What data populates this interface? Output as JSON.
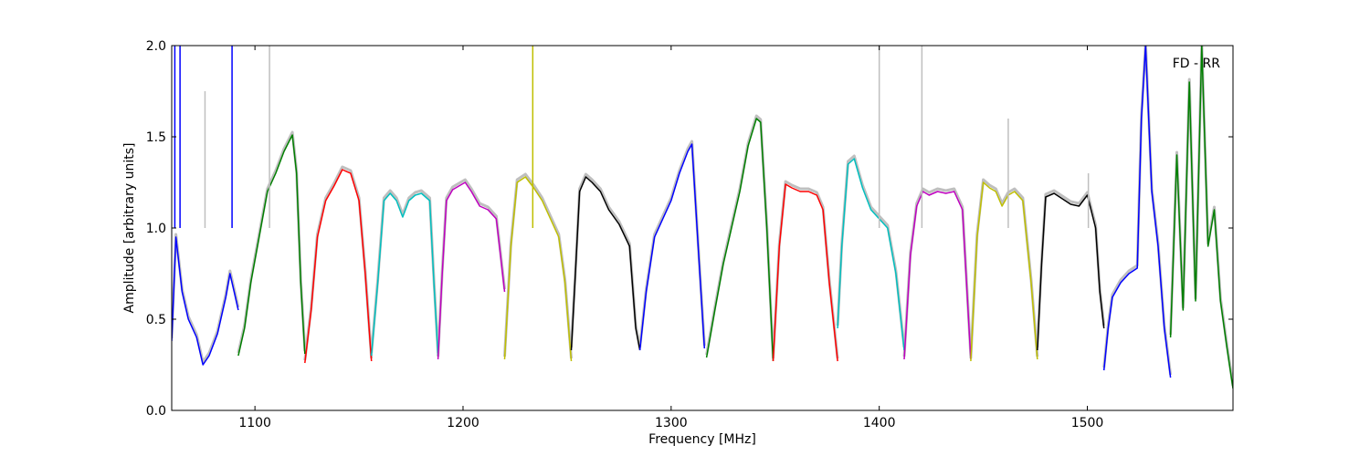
{
  "chart_data": {
    "type": "line",
    "xlabel": "Frequency [MHz]",
    "ylabel": "Amplitude [arbitrary units]",
    "annotation": "FD - RR",
    "legend": "none",
    "grid": false,
    "xlim": [
      1060,
      1570
    ],
    "ylim": [
      0,
      2.0
    ],
    "x_ticks": [
      1100,
      1200,
      1300,
      1400,
      1500
    ],
    "x_tick_labels": [
      "1100",
      "1200",
      "1300",
      "1400",
      "1500"
    ],
    "y_ticks": [
      0.0,
      0.5,
      1.0,
      1.5,
      2.0
    ],
    "y_tick_labels": [
      "0.0",
      "0.5",
      "1.0",
      "1.5",
      "2.0"
    ],
    "reference_color": "#bfbfbf",
    "spikes": [
      {
        "x": 1061.5,
        "y": 2.0,
        "color": "#0000ff"
      },
      {
        "x": 1064,
        "y": 2.0,
        "color": "#0000ff"
      },
      {
        "x": 1076,
        "y": 1.75,
        "color": "#bfbfbf"
      },
      {
        "x": 1089,
        "y": 2.0,
        "color": "#0000ff"
      },
      {
        "x": 1107,
        "y": 2.0,
        "color": "#bfbfbf"
      },
      {
        "x": 1233.5,
        "y": 2.0,
        "color": "#bfbf00"
      },
      {
        "x": 1400,
        "y": 2.0,
        "color": "#bfbfbf"
      },
      {
        "x": 1420.5,
        "y": 2.0,
        "color": "#bfbfbf"
      },
      {
        "x": 1462,
        "y": 1.6,
        "color": "#bfbfbf"
      },
      {
        "x": 1500.5,
        "y": 1.3,
        "color": "#bfbfbf"
      }
    ],
    "series": [
      {
        "color": "#0000ff",
        "x": [
          1060,
          1062,
          1065,
          1068,
          1072,
          1075,
          1078,
          1082,
          1086,
          1088,
          1090,
          1092
        ],
        "y": [
          0.38,
          0.95,
          0.65,
          0.5,
          0.4,
          0.25,
          0.3,
          0.42,
          0.62,
          0.75,
          0.65,
          0.55
        ]
      },
      {
        "color": "#007f00",
        "x": [
          1092,
          1095,
          1098,
          1102,
          1106,
          1110,
          1114,
          1118,
          1120,
          1122,
          1124
        ],
        "y": [
          0.3,
          0.45,
          0.7,
          0.95,
          1.2,
          1.3,
          1.42,
          1.51,
          1.3,
          0.7,
          0.31
        ]
      },
      {
        "color": "#ff0000",
        "x": [
          1124,
          1127,
          1130,
          1134,
          1138,
          1142,
          1146,
          1150,
          1153,
          1156
        ],
        "y": [
          0.26,
          0.55,
          0.95,
          1.15,
          1.23,
          1.32,
          1.3,
          1.15,
          0.75,
          0.27
        ]
      },
      {
        "color": "#00bfbf",
        "x": [
          1156,
          1159,
          1162,
          1165,
          1168,
          1171,
          1174,
          1177,
          1180,
          1184,
          1186,
          1188
        ],
        "y": [
          0.3,
          0.7,
          1.15,
          1.19,
          1.15,
          1.06,
          1.15,
          1.18,
          1.19,
          1.15,
          0.7,
          0.3
        ]
      },
      {
        "color": "#bf00bf",
        "x": [
          1188,
          1190,
          1192,
          1195,
          1198,
          1201,
          1204,
          1208,
          1212,
          1216,
          1218,
          1220
        ],
        "y": [
          0.28,
          0.75,
          1.15,
          1.21,
          1.23,
          1.25,
          1.2,
          1.12,
          1.1,
          1.05,
          0.85,
          0.65
        ]
      },
      {
        "color": "#bfbf00",
        "x": [
          1220,
          1223,
          1226,
          1230,
          1234,
          1238,
          1242,
          1246,
          1249,
          1252
        ],
        "y": [
          0.28,
          0.9,
          1.25,
          1.28,
          1.22,
          1.15,
          1.05,
          0.95,
          0.7,
          0.27
        ]
      },
      {
        "color": "#000000",
        "x": [
          1252,
          1254,
          1256,
          1259,
          1262,
          1266,
          1270,
          1275,
          1280,
          1283,
          1285
        ],
        "y": [
          0.33,
          0.75,
          1.2,
          1.28,
          1.25,
          1.2,
          1.1,
          1.02,
          0.9,
          0.45,
          0.33
        ]
      },
      {
        "color": "#0000ff",
        "x": [
          1285,
          1288,
          1292,
          1296,
          1300,
          1304,
          1308,
          1310,
          1313,
          1316
        ],
        "y": [
          0.33,
          0.65,
          0.95,
          1.05,
          1.15,
          1.3,
          1.42,
          1.46,
          0.9,
          0.34
        ]
      },
      {
        "color": "#007f00",
        "x": [
          1317,
          1321,
          1325,
          1329,
          1333,
          1337,
          1341,
          1343,
          1346,
          1349
        ],
        "y": [
          0.29,
          0.55,
          0.8,
          1.0,
          1.2,
          1.45,
          1.6,
          1.58,
          1.0,
          0.27
        ]
      },
      {
        "color": "#ff0000",
        "x": [
          1349,
          1352,
          1355,
          1358,
          1362,
          1366,
          1370,
          1373,
          1376,
          1380
        ],
        "y": [
          0.27,
          0.9,
          1.24,
          1.22,
          1.2,
          1.2,
          1.18,
          1.1,
          0.7,
          0.27
        ]
      },
      {
        "color": "#00bfbf",
        "x": [
          1380,
          1382,
          1385,
          1388,
          1392,
          1396,
          1400,
          1404,
          1408,
          1412
        ],
        "y": [
          0.45,
          0.9,
          1.35,
          1.38,
          1.22,
          1.1,
          1.05,
          1.0,
          0.75,
          0.33
        ]
      },
      {
        "color": "#bf00bf",
        "x": [
          1412,
          1415,
          1418,
          1421,
          1424,
          1428,
          1432,
          1436,
          1440,
          1444
        ],
        "y": [
          0.28,
          0.85,
          1.12,
          1.2,
          1.18,
          1.2,
          1.19,
          1.2,
          1.1,
          0.28
        ]
      },
      {
        "color": "#bfbf00",
        "x": [
          1444,
          1447,
          1450,
          1453,
          1456,
          1459,
          1462,
          1465,
          1469,
          1473,
          1476
        ],
        "y": [
          0.27,
          0.95,
          1.25,
          1.22,
          1.2,
          1.12,
          1.18,
          1.2,
          1.15,
          0.7,
          0.28
        ]
      },
      {
        "color": "#000000",
        "x": [
          1476,
          1478,
          1480,
          1484,
          1488,
          1492,
          1496,
          1500,
          1504,
          1506,
          1508
        ],
        "y": [
          0.33,
          0.8,
          1.17,
          1.19,
          1.16,
          1.13,
          1.12,
          1.18,
          1.0,
          0.65,
          0.45
        ]
      },
      {
        "color": "#0000ff",
        "x": [
          1508,
          1510,
          1512,
          1516,
          1520,
          1524,
          1526,
          1528,
          1531,
          1534,
          1537,
          1540
        ],
        "y": [
          0.22,
          0.45,
          0.62,
          0.7,
          0.75,
          0.78,
          1.6,
          2.0,
          1.2,
          0.9,
          0.45,
          0.18
        ]
      },
      {
        "color": "#007f00",
        "x": [
          1540,
          1543,
          1546,
          1549,
          1552,
          1555,
          1558,
          1561,
          1564,
          1567,
          1570
        ],
        "y": [
          0.4,
          1.4,
          0.55,
          1.8,
          0.6,
          2.0,
          0.9,
          1.1,
          0.6,
          0.35,
          0.12
        ]
      }
    ]
  }
}
